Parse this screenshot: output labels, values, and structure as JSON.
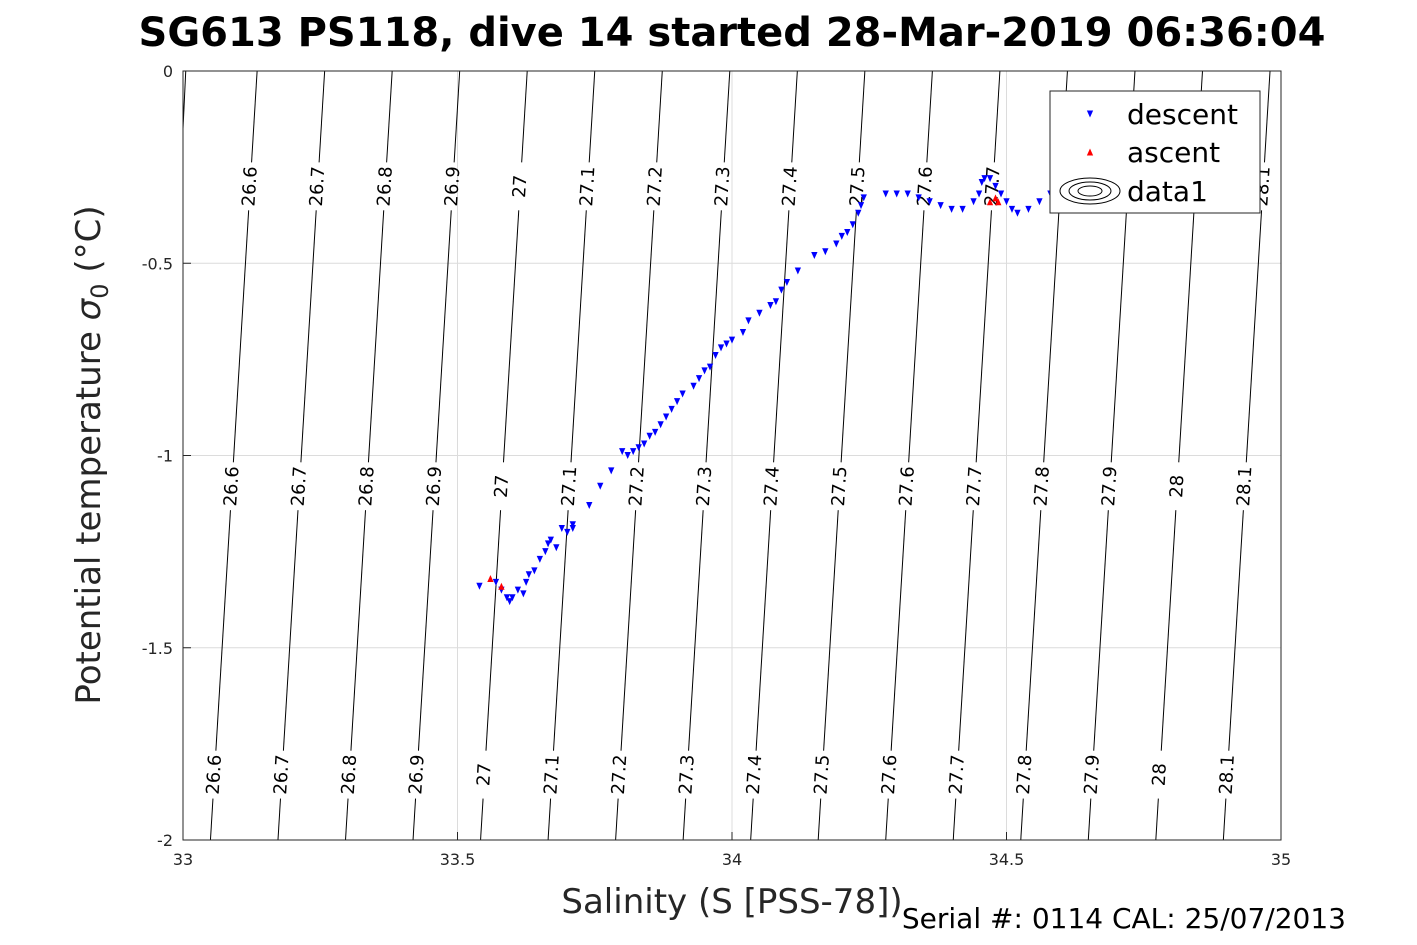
{
  "chart_data": {
    "type": "scatter",
    "title": "SG613 PS118, dive 14 started 28-Mar-2019 06:36:04",
    "xlabel": "Salinity (S [PSS-78])",
    "ylabel_main": "Potential temperature ",
    "ylabel_sigma": "σ",
    "ylabel_sub": "0",
    "ylabel_unit": " (°C)",
    "xlim": [
      33,
      35
    ],
    "ylim": [
      -2,
      0
    ],
    "x_ticks": [
      {
        "value": 33,
        "label": "33"
      },
      {
        "value": 33.5,
        "label": "33.5"
      },
      {
        "value": 34,
        "label": "34"
      },
      {
        "value": 34.5,
        "label": "34.5"
      },
      {
        "value": 35,
        "label": "35"
      }
    ],
    "y_ticks": [
      {
        "value": 0,
        "label": "0"
      },
      {
        "value": -0.5,
        "label": "-0.5"
      },
      {
        "value": -1,
        "label": "-1"
      },
      {
        "value": -1.5,
        "label": "-1.5"
      },
      {
        "value": -2,
        "label": "-2"
      }
    ],
    "grid": true,
    "legend_position": "top-right",
    "footer": "Serial #: 0114  CAL: 25/07/2013",
    "contours": [
      {
        "level": 26.6,
        "x_top": 33.135,
        "x_bottom": 33.05,
        "labels": [
          {
            "text": "26.6",
            "y": -0.3
          },
          {
            "text": "26.6",
            "y": -1.08
          },
          {
            "text": "26.6",
            "y": -1.83
          }
        ]
      },
      {
        "level": 26.7,
        "x_top": 33.258,
        "x_bottom": 33.173,
        "labels": [
          {
            "text": "26.7",
            "y": -0.3
          },
          {
            "text": "26.7",
            "y": -1.08
          },
          {
            "text": "26.7",
            "y": -1.83
          }
        ]
      },
      {
        "level": 26.8,
        "x_top": 33.381,
        "x_bottom": 33.296,
        "labels": [
          {
            "text": "26.8",
            "y": -0.3
          },
          {
            "text": "26.8",
            "y": -1.08
          },
          {
            "text": "26.8",
            "y": -1.83
          }
        ]
      },
      {
        "level": 26.9,
        "x_top": 33.504,
        "x_bottom": 33.419,
        "labels": [
          {
            "text": "26.9",
            "y": -0.3
          },
          {
            "text": "26.9",
            "y": -1.08
          },
          {
            "text": "26.9",
            "y": -1.83
          }
        ]
      },
      {
        "level": 27,
        "x_top": 33.627,
        "x_bottom": 33.542,
        "labels": [
          {
            "text": "27",
            "y": -0.3
          },
          {
            "text": "27",
            "y": -1.08
          },
          {
            "text": "27",
            "y": -1.83
          }
        ]
      },
      {
        "level": 27.1,
        "x_top": 33.75,
        "x_bottom": 33.665,
        "labels": [
          {
            "text": "27.1",
            "y": -0.3
          },
          {
            "text": "27.1",
            "y": -1.08
          },
          {
            "text": "27.1",
            "y": -1.83
          }
        ]
      },
      {
        "level": 27.2,
        "x_top": 33.873,
        "x_bottom": 33.788,
        "labels": [
          {
            "text": "27.2",
            "y": -0.3
          },
          {
            "text": "27.2",
            "y": -1.08
          },
          {
            "text": "27.2",
            "y": -1.83
          }
        ]
      },
      {
        "level": 27.3,
        "x_top": 33.996,
        "x_bottom": 33.911,
        "labels": [
          {
            "text": "27.3",
            "y": -0.3
          },
          {
            "text": "27.3",
            "y": -1.08
          },
          {
            "text": "27.3",
            "y": -1.83
          }
        ]
      },
      {
        "level": 27.4,
        "x_top": 34.119,
        "x_bottom": 34.034,
        "labels": [
          {
            "text": "27.4",
            "y": -0.3
          },
          {
            "text": "27.4",
            "y": -1.08
          },
          {
            "text": "27.4",
            "y": -1.83
          }
        ]
      },
      {
        "level": 27.5,
        "x_top": 34.242,
        "x_bottom": 34.157,
        "labels": [
          {
            "text": "27.5",
            "y": -0.3
          },
          {
            "text": "27.5",
            "y": -1.08
          },
          {
            "text": "27.5",
            "y": -1.83
          }
        ]
      },
      {
        "level": 27.6,
        "x_top": 34.365,
        "x_bottom": 34.28,
        "labels": [
          {
            "text": "27.6",
            "y": -0.3
          },
          {
            "text": "27.6",
            "y": -1.08
          },
          {
            "text": "27.6",
            "y": -1.83
          }
        ]
      },
      {
        "level": 27.7,
        "x_top": 34.488,
        "x_bottom": 34.403,
        "labels": [
          {
            "text": "27.7",
            "y": -0.3
          },
          {
            "text": "27.7",
            "y": -1.08
          },
          {
            "text": "27.7",
            "y": -1.83
          }
        ]
      },
      {
        "level": 27.8,
        "x_top": 34.611,
        "x_bottom": 34.526,
        "labels": [
          {
            "text": "27.8",
            "y": -1.08
          },
          {
            "text": "27.8",
            "y": -1.83
          }
        ]
      },
      {
        "level": 27.9,
        "x_top": 34.734,
        "x_bottom": 34.649,
        "labels": [
          {
            "text": "27.9",
            "y": -1.08
          },
          {
            "text": "27.9",
            "y": -1.83
          }
        ]
      },
      {
        "level": 28,
        "x_top": 34.857,
        "x_bottom": 34.772,
        "labels": [
          {
            "text": "28",
            "y": -1.08
          },
          {
            "text": "28",
            "y": -1.83
          }
        ]
      },
      {
        "level": 28.1,
        "x_top": 34.98,
        "x_bottom": 34.895,
        "labels": [
          {
            "text": "28.1",
            "y": -0.3
          },
          {
            "text": "28.1",
            "y": -1.08
          },
          {
            "text": "28.1",
            "y": -1.83
          }
        ]
      }
    ],
    "edge_contour": {
      "x_top": 33.005,
      "x_bottom": 33.0,
      "y_bottom": -0.15
    },
    "series": [
      {
        "name": "descent",
        "marker": "triangle-down",
        "color": "#0000ff",
        "points": [
          [
            33.54,
            -1.34
          ],
          [
            33.57,
            -1.33
          ],
          [
            33.58,
            -1.35
          ],
          [
            33.59,
            -1.37
          ],
          [
            33.595,
            -1.38
          ],
          [
            33.6,
            -1.37
          ],
          [
            33.61,
            -1.35
          ],
          [
            33.62,
            -1.36
          ],
          [
            33.625,
            -1.33
          ],
          [
            33.63,
            -1.31
          ],
          [
            33.64,
            -1.3
          ],
          [
            33.65,
            -1.27
          ],
          [
            33.66,
            -1.25
          ],
          [
            33.665,
            -1.23
          ],
          [
            33.67,
            -1.22
          ],
          [
            33.68,
            -1.24
          ],
          [
            33.69,
            -1.19
          ],
          [
            33.7,
            -1.2
          ],
          [
            33.71,
            -1.18
          ],
          [
            33.71,
            -1.19
          ],
          [
            33.74,
            -1.13
          ],
          [
            33.76,
            -1.08
          ],
          [
            33.78,
            -1.04
          ],
          [
            33.8,
            -0.99
          ],
          [
            33.81,
            -1.0
          ],
          [
            33.82,
            -0.99
          ],
          [
            33.83,
            -0.98
          ],
          [
            33.84,
            -0.97
          ],
          [
            33.85,
            -0.95
          ],
          [
            33.86,
            -0.94
          ],
          [
            33.87,
            -0.92
          ],
          [
            33.88,
            -0.9
          ],
          [
            33.89,
            -0.88
          ],
          [
            33.9,
            -0.86
          ],
          [
            33.91,
            -0.84
          ],
          [
            33.93,
            -0.82
          ],
          [
            33.94,
            -0.8
          ],
          [
            33.95,
            -0.78
          ],
          [
            33.96,
            -0.77
          ],
          [
            33.97,
            -0.74
          ],
          [
            33.98,
            -0.72
          ],
          [
            33.99,
            -0.71
          ],
          [
            34.0,
            -0.7
          ],
          [
            34.02,
            -0.68
          ],
          [
            34.03,
            -0.65
          ],
          [
            34.05,
            -0.63
          ],
          [
            34.07,
            -0.61
          ],
          [
            34.08,
            -0.6
          ],
          [
            34.09,
            -0.57
          ],
          [
            34.1,
            -0.55
          ],
          [
            34.12,
            -0.52
          ],
          [
            34.15,
            -0.48
          ],
          [
            34.17,
            -0.47
          ],
          [
            34.19,
            -0.45
          ],
          [
            34.2,
            -0.43
          ],
          [
            34.21,
            -0.42
          ],
          [
            34.22,
            -0.4
          ],
          [
            34.23,
            -0.37
          ],
          [
            34.235,
            -0.35
          ],
          [
            34.24,
            -0.33
          ],
          [
            34.28,
            -0.32
          ],
          [
            34.3,
            -0.32
          ],
          [
            34.32,
            -0.32
          ],
          [
            34.34,
            -0.33
          ],
          [
            34.36,
            -0.34
          ],
          [
            34.38,
            -0.35
          ],
          [
            34.4,
            -0.36
          ],
          [
            34.42,
            -0.36
          ],
          [
            34.44,
            -0.34
          ],
          [
            34.45,
            -0.32
          ],
          [
            34.455,
            -0.29
          ],
          [
            34.46,
            -0.28
          ],
          [
            34.47,
            -0.28
          ],
          [
            34.48,
            -0.3
          ],
          [
            34.49,
            -0.32
          ],
          [
            34.5,
            -0.34
          ],
          [
            34.51,
            -0.36
          ],
          [
            34.52,
            -0.37
          ],
          [
            34.54,
            -0.36
          ],
          [
            34.56,
            -0.34
          ],
          [
            34.58,
            -0.32
          ],
          [
            34.6,
            -0.3
          ],
          [
            34.62,
            -0.3
          ],
          [
            34.64,
            -0.31
          ]
        ]
      },
      {
        "name": "ascent",
        "marker": "triangle-up",
        "color": "#ff0000",
        "points": [
          [
            33.56,
            -1.32
          ],
          [
            33.58,
            -1.34
          ],
          [
            34.47,
            -0.34
          ],
          [
            34.48,
            -0.33
          ],
          [
            34.485,
            -0.34
          ]
        ]
      }
    ],
    "legend": [
      {
        "label": "descent",
        "marker": "triangle-down",
        "color": "#0000ff"
      },
      {
        "label": "ascent",
        "marker": "triangle-up",
        "color": "#ff0000"
      },
      {
        "label": "data1",
        "marker": "contour-ellipses",
        "color": "#000000"
      }
    ]
  }
}
